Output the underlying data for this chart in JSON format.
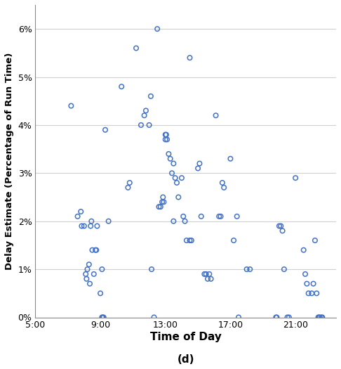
{
  "title": "",
  "xlabel": "Time of Day",
  "xlabel_sub": "(d)",
  "ylabel": "Delay Estimate (Percentage of Run Time)",
  "xlim_hours": [
    5.0,
    23.5
  ],
  "ylim": [
    0.0,
    0.065
  ],
  "yticks": [
    0,
    0.01,
    0.02,
    0.03,
    0.04,
    0.05,
    0.06
  ],
  "xticks_hours": [
    5,
    9,
    13,
    17,
    21
  ],
  "xtick_labels": [
    "5:00",
    "9:00",
    "13:00",
    "17:00",
    "21:00"
  ],
  "scatter_color": "#4472C4",
  "marker_size": 22,
  "marker_lw": 1.1,
  "points": [
    [
      7.2,
      0.044
    ],
    [
      7.6,
      0.021
    ],
    [
      7.8,
      0.022
    ],
    [
      7.85,
      0.019
    ],
    [
      8.0,
      0.019
    ],
    [
      8.1,
      0.009
    ],
    [
      8.15,
      0.008
    ],
    [
      8.2,
      0.01
    ],
    [
      8.3,
      0.011
    ],
    [
      8.35,
      0.007
    ],
    [
      8.4,
      0.019
    ],
    [
      8.45,
      0.02
    ],
    [
      8.5,
      0.014
    ],
    [
      8.6,
      0.009
    ],
    [
      8.7,
      0.014
    ],
    [
      8.75,
      0.014
    ],
    [
      8.8,
      0.019
    ],
    [
      9.0,
      0.005
    ],
    [
      9.1,
      0.01
    ],
    [
      9.1,
      0.0
    ],
    [
      9.15,
      0.0
    ],
    [
      9.2,
      0.0
    ],
    [
      9.3,
      0.039
    ],
    [
      9.5,
      0.02
    ],
    [
      10.3,
      0.048
    ],
    [
      10.7,
      0.027
    ],
    [
      10.8,
      0.028
    ],
    [
      11.2,
      0.056
    ],
    [
      11.5,
      0.04
    ],
    [
      11.7,
      0.042
    ],
    [
      11.8,
      0.043
    ],
    [
      12.0,
      0.04
    ],
    [
      12.1,
      0.046
    ],
    [
      12.15,
      0.01
    ],
    [
      12.3,
      0.0
    ],
    [
      12.5,
      0.06
    ],
    [
      12.6,
      0.023
    ],
    [
      12.7,
      0.023
    ],
    [
      12.8,
      0.024
    ],
    [
      12.85,
      0.025
    ],
    [
      12.9,
      0.024
    ],
    [
      13.0,
      0.037
    ],
    [
      13.0,
      0.038
    ],
    [
      13.05,
      0.038
    ],
    [
      13.1,
      0.037
    ],
    [
      13.2,
      0.034
    ],
    [
      13.3,
      0.033
    ],
    [
      13.4,
      0.03
    ],
    [
      13.5,
      0.032
    ],
    [
      13.5,
      0.02
    ],
    [
      13.6,
      0.029
    ],
    [
      13.7,
      0.028
    ],
    [
      13.8,
      0.025
    ],
    [
      14.0,
      0.029
    ],
    [
      14.1,
      0.021
    ],
    [
      14.2,
      0.02
    ],
    [
      14.3,
      0.016
    ],
    [
      14.5,
      0.054
    ],
    [
      14.5,
      0.016
    ],
    [
      14.6,
      0.016
    ],
    [
      15.0,
      0.031
    ],
    [
      15.1,
      0.032
    ],
    [
      15.2,
      0.021
    ],
    [
      15.4,
      0.009
    ],
    [
      15.5,
      0.009
    ],
    [
      15.6,
      0.008
    ],
    [
      15.7,
      0.009
    ],
    [
      15.8,
      0.008
    ],
    [
      16.1,
      0.042
    ],
    [
      16.3,
      0.021
    ],
    [
      16.4,
      0.021
    ],
    [
      16.5,
      0.028
    ],
    [
      16.6,
      0.027
    ],
    [
      17.0,
      0.033
    ],
    [
      17.2,
      0.016
    ],
    [
      17.4,
      0.021
    ],
    [
      17.5,
      0.0
    ],
    [
      18.0,
      0.01
    ],
    [
      18.2,
      0.01
    ],
    [
      19.8,
      0.0
    ],
    [
      19.85,
      0.0
    ],
    [
      20.0,
      0.019
    ],
    [
      20.1,
      0.019
    ],
    [
      20.2,
      0.018
    ],
    [
      20.3,
      0.01
    ],
    [
      20.5,
      0.0
    ],
    [
      20.6,
      0.0
    ],
    [
      21.0,
      0.029
    ],
    [
      21.5,
      0.014
    ],
    [
      21.6,
      0.009
    ],
    [
      21.7,
      0.007
    ],
    [
      21.8,
      0.005
    ],
    [
      22.0,
      0.005
    ],
    [
      22.1,
      0.007
    ],
    [
      22.2,
      0.016
    ],
    [
      22.3,
      0.005
    ],
    [
      22.4,
      0.0
    ],
    [
      22.45,
      0.0
    ],
    [
      22.5,
      0.0
    ],
    [
      22.6,
      0.0
    ],
    [
      22.65,
      0.0
    ]
  ]
}
